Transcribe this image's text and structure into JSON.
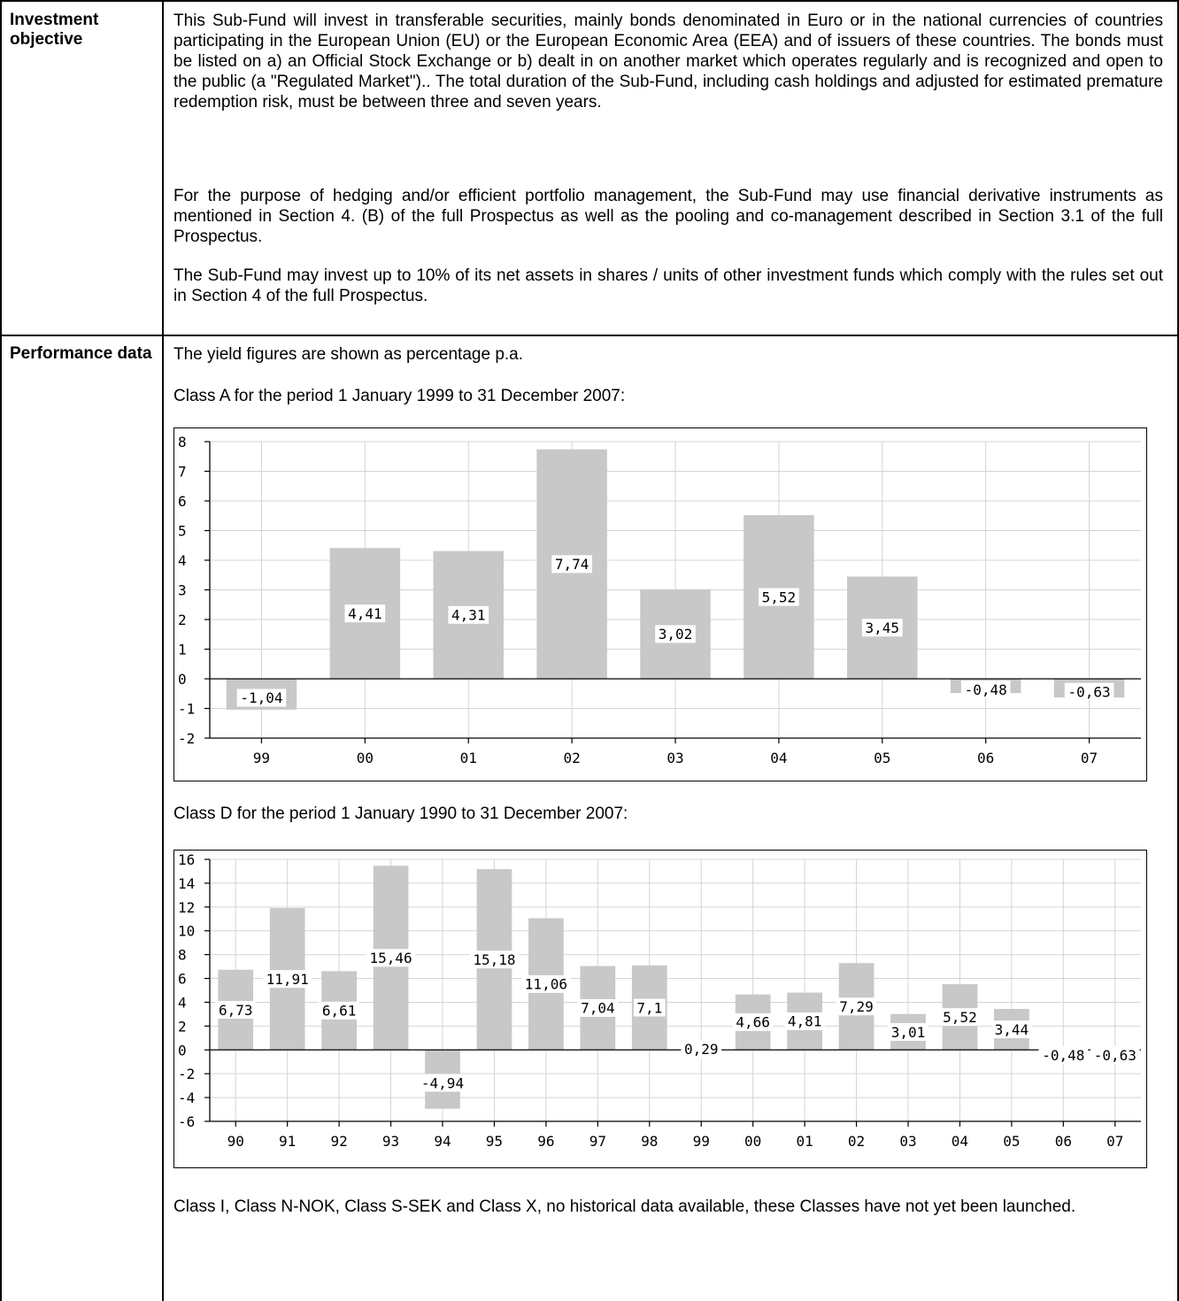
{
  "table": {
    "rows": [
      {
        "label": "Investment objective",
        "paragraphs": [
          "This Sub-Fund will invest in transferable securities, mainly bonds denominated in Euro or in the national currencies of countries participating in the European Union (EU) or the European Economic Area (EEA) and of issuers of these countries. The bonds must be listed on a) an Official Stock Exchange or b) dealt in on another market which operates regularly and is recognized and open to the public (a \"Regulated Market\").. The total duration of the Sub-Fund, including cash holdings and adjusted for estimated premature redemption risk, must be between three and seven years.",
          "For the purpose of hedging and/or efficient portfolio management, the Sub-Fund may use financial derivative instruments as mentioned in Section 4. (B) of the full Prospectus as well as the pooling and co-management described in Section 3.1 of the full Prospectus.",
          "The Sub-Fund may invest up to 10% of its net assets in shares / units of other investment funds which comply with the rules set out in Section 4 of the full Prospectus."
        ]
      },
      {
        "label": "Performance data",
        "intro": "The yield figures are shown as percentage p.a.",
        "class_a_caption": "Class A for the period 1 January 1999 to 31 December 2007:",
        "class_d_caption": "Class D for the period 1 January 1990 to 31 December 2007:",
        "footer": "Class I, Class N-NOK, Class S-SEK and Class X, no historical data available, these Classes have not yet been launched."
      }
    ]
  },
  "chart_data": [
    {
      "type": "bar",
      "categories": [
        "99",
        "00",
        "01",
        "02",
        "03",
        "04",
        "05",
        "06",
        "07"
      ],
      "values": [
        -1.04,
        4.41,
        4.31,
        7.74,
        3.02,
        5.52,
        3.45,
        -0.48,
        -0.63
      ],
      "value_labels": [
        "-1,04",
        "4,41",
        "4,31",
        "7,74",
        "3,02",
        "5,52",
        "3,45",
        "-0,48",
        "-0,63"
      ],
      "yticks": [
        "8",
        "7",
        "6",
        "5",
        "4",
        "3",
        "2",
        "1",
        "0",
        "-1",
        "-2"
      ],
      "ylim": [
        -2,
        8
      ],
      "grid": true,
      "bar_color": "#c8c8c8"
    },
    {
      "type": "bar",
      "categories": [
        "90",
        "91",
        "92",
        "93",
        "94",
        "95",
        "96",
        "97",
        "98",
        "99",
        "00",
        "01",
        "02",
        "03",
        "04",
        "05",
        "06",
        "07"
      ],
      "values": [
        6.73,
        11.91,
        6.61,
        15.46,
        -4.94,
        15.18,
        11.06,
        7.04,
        7.1,
        0.29,
        4.66,
        4.81,
        7.29,
        3.01,
        5.52,
        3.44,
        -0.48,
        -0.63
      ],
      "value_labels": [
        "6,73",
        "11,91",
        "6,61",
        "15,46",
        "-4,94",
        "15,18",
        "11,06",
        "7,04",
        "7,1",
        "0,29",
        "4,66",
        "4,81",
        "7,29",
        "3,01",
        "5,52",
        "3,44",
        "-0,48",
        "-0,63"
      ],
      "yticks": [
        "16",
        "14",
        "12",
        "10",
        "8",
        "6",
        "4",
        "2",
        "0",
        "-2",
        "-4",
        "-6"
      ],
      "ylim": [
        -6,
        16
      ],
      "grid": true,
      "bar_color": "#c8c8c8"
    }
  ]
}
